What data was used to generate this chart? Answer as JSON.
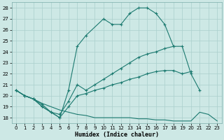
{
  "background_color": "#cde8e5",
  "grid_color": "#aacfcc",
  "line_color": "#1c7a70",
  "xlabel": "Humidex (Indice chaleur)",
  "xlim": [
    -0.5,
    23.5
  ],
  "ylim": [
    17.5,
    28.5
  ],
  "xticks": [
    0,
    1,
    2,
    3,
    4,
    5,
    6,
    7,
    8,
    9,
    10,
    11,
    12,
    13,
    14,
    15,
    16,
    17,
    18,
    19,
    20,
    21,
    22,
    23
  ],
  "yticks": [
    18,
    19,
    20,
    21,
    22,
    23,
    24,
    25,
    26,
    27,
    28
  ],
  "line_spike_x": [
    0,
    1,
    2,
    3,
    4,
    5,
    6,
    7,
    8,
    10,
    11,
    12,
    13,
    14,
    15,
    16,
    17,
    18
  ],
  "line_spike_y": [
    20.5,
    20.0,
    19.7,
    19.2,
    18.5,
    18.0,
    20.5,
    24.5,
    25.5,
    27.0,
    26.5,
    26.5,
    27.5,
    28.0,
    28.0,
    27.5,
    26.5,
    24.5
  ],
  "line_medium_x": [
    0,
    1,
    2,
    3,
    4,
    5,
    6,
    7,
    8,
    9,
    10,
    11,
    12,
    13,
    14,
    15,
    16,
    17,
    18,
    19,
    20,
    21
  ],
  "line_medium_y": [
    20.5,
    20.0,
    19.7,
    19.0,
    18.5,
    18.3,
    19.5,
    21.0,
    20.5,
    21.0,
    21.5,
    22.0,
    22.5,
    23.0,
    23.5,
    23.8,
    24.0,
    24.3,
    24.5,
    24.5,
    22.0,
    20.5
  ],
  "line_gentle_x": [
    0,
    1,
    2,
    3,
    4,
    5,
    6,
    7,
    8,
    9,
    10,
    11,
    12,
    13,
    14,
    15,
    16,
    17,
    18,
    19,
    20
  ],
  "line_gentle_y": [
    20.5,
    20.0,
    19.7,
    19.0,
    18.5,
    18.0,
    19.0,
    20.0,
    20.2,
    20.5,
    20.7,
    21.0,
    21.2,
    21.5,
    21.7,
    22.0,
    22.2,
    22.3,
    22.3,
    22.0,
    22.2
  ],
  "line_bottom_x": [
    0,
    1,
    2,
    3,
    4,
    5,
    6,
    7,
    8,
    9,
    10,
    11,
    12,
    13,
    14,
    15,
    16,
    17,
    18,
    19,
    20,
    21,
    22,
    23
  ],
  "line_bottom_y": [
    20.5,
    20.0,
    19.7,
    19.3,
    19.0,
    18.7,
    18.5,
    18.3,
    18.2,
    18.0,
    18.0,
    18.0,
    18.0,
    18.0,
    17.9,
    17.9,
    17.8,
    17.8,
    17.7,
    17.7,
    17.7,
    18.5,
    18.3,
    17.7
  ]
}
